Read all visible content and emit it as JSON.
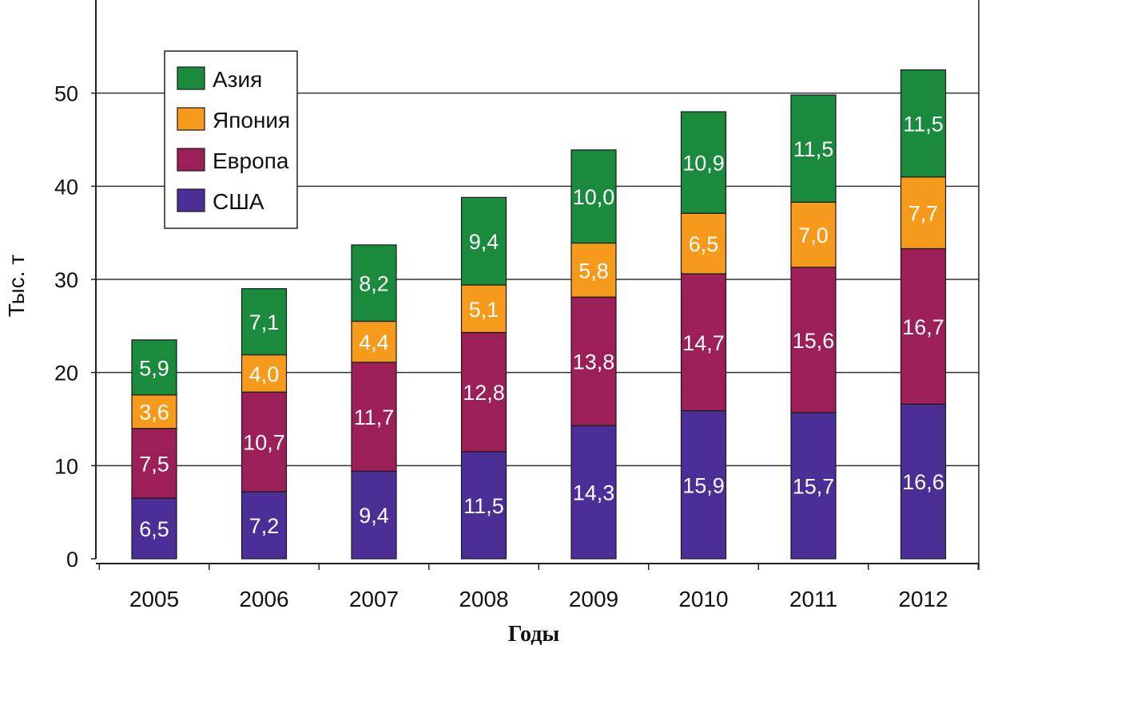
{
  "chart_data": {
    "type": "bar",
    "stacked": true,
    "title": "",
    "xlabel": "Годы",
    "ylabel": "Тыс. т",
    "ylim": [
      0,
      60
    ],
    "yticks": [
      0,
      10,
      20,
      30,
      40,
      50
    ],
    "grid": true,
    "legend_position": "top-left",
    "categories": [
      "2005",
      "2006",
      "2007",
      "2008",
      "2009",
      "2010",
      "2011",
      "2012"
    ],
    "series": [
      {
        "name": "США",
        "color": "#4b2f96",
        "values": [
          6.5,
          7.2,
          9.4,
          11.5,
          14.3,
          15.9,
          15.7,
          16.6
        ],
        "labels": [
          "6,5",
          "7,2",
          "9,4",
          "11,5",
          "14,3",
          "15,9",
          "15,7",
          "16,6"
        ]
      },
      {
        "name": "Европа",
        "color": "#9c1f58",
        "values": [
          7.5,
          10.7,
          11.7,
          12.8,
          13.8,
          14.7,
          15.6,
          16.7
        ],
        "labels": [
          "7,5",
          "10,7",
          "11,7",
          "12,8",
          "13,8",
          "14,7",
          "15,6",
          "16,7"
        ]
      },
      {
        "name": "Япония",
        "color": "#f59a1b",
        "values": [
          3.6,
          4.0,
          4.4,
          5.1,
          5.8,
          6.5,
          7.0,
          7.7
        ],
        "labels": [
          "3,6",
          "4,0",
          "4,4",
          "5,1",
          "5,8",
          "6,5",
          "7,0",
          "7,7"
        ]
      },
      {
        "name": "Азия",
        "color": "#1a8a3c",
        "values": [
          5.9,
          7.1,
          8.2,
          9.4,
          10.0,
          10.9,
          11.5,
          11.5
        ],
        "labels": [
          "5,9",
          "7,1",
          "8,2",
          "9,4",
          "10,0",
          "10,9",
          "11,5",
          "11,5"
        ]
      }
    ],
    "legend_order": [
      "Азия",
      "Япония",
      "Европа",
      "США"
    ]
  }
}
